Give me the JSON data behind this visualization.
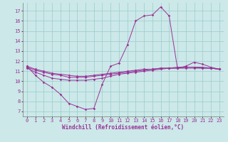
{
  "bg_color": "#cce8e8",
  "grid_color": "#99cccc",
  "line_color": "#993399",
  "xlabel": "Windchill (Refroidissement éolien,°C)",
  "xlim": [
    -0.5,
    23.5
  ],
  "ylim": [
    6.5,
    17.8
  ],
  "yticks": [
    7,
    8,
    9,
    10,
    11,
    12,
    13,
    14,
    15,
    16,
    17
  ],
  "xticks": [
    0,
    1,
    2,
    3,
    4,
    5,
    6,
    7,
    8,
    9,
    10,
    11,
    12,
    13,
    14,
    15,
    16,
    17,
    18,
    19,
    20,
    21,
    22,
    23
  ],
  "line1_x": [
    0,
    1,
    2,
    3,
    4,
    5,
    6,
    7,
    8,
    9,
    10,
    11,
    12,
    13,
    14,
    15,
    16,
    17,
    18,
    19,
    20,
    21,
    22,
    23
  ],
  "line1_y": [
    11.5,
    10.6,
    9.9,
    9.4,
    8.7,
    7.8,
    7.5,
    7.2,
    7.3,
    9.7,
    11.5,
    11.8,
    13.6,
    16.0,
    16.5,
    16.6,
    17.4,
    16.5,
    11.3,
    11.5,
    11.9,
    11.7,
    11.4,
    11.2
  ],
  "line2_x": [
    0,
    1,
    2,
    3,
    4,
    5,
    6,
    7,
    8,
    9,
    10,
    11,
    12,
    13,
    14,
    15,
    16,
    17,
    18,
    19,
    20,
    21,
    22,
    23
  ],
  "line2_y": [
    11.3,
    10.9,
    10.6,
    10.3,
    10.2,
    10.1,
    10.1,
    10.1,
    10.2,
    10.3,
    10.5,
    10.7,
    10.8,
    10.9,
    11.0,
    11.1,
    11.2,
    11.3,
    11.3,
    11.3,
    11.3,
    11.3,
    11.3,
    11.2
  ],
  "line3_x": [
    0,
    1,
    2,
    3,
    4,
    5,
    6,
    7,
    8,
    9,
    10,
    11,
    12,
    13,
    14,
    15,
    16,
    17,
    18,
    19,
    20,
    21,
    22,
    23
  ],
  "line3_y": [
    11.4,
    11.1,
    10.9,
    10.7,
    10.6,
    10.4,
    10.4,
    10.4,
    10.5,
    10.6,
    10.7,
    10.8,
    10.9,
    11.0,
    11.1,
    11.2,
    11.3,
    11.3,
    11.3,
    11.4,
    11.4,
    11.3,
    11.3,
    11.2
  ],
  "line4_x": [
    0,
    1,
    2,
    3,
    4,
    5,
    6,
    7,
    8,
    9,
    10,
    11,
    12,
    13,
    14,
    15,
    16,
    17,
    18,
    19,
    20,
    21,
    22,
    23
  ],
  "line4_y": [
    11.5,
    11.2,
    11.0,
    10.8,
    10.7,
    10.6,
    10.5,
    10.5,
    10.6,
    10.7,
    10.8,
    10.9,
    11.0,
    11.1,
    11.2,
    11.2,
    11.3,
    11.3,
    11.4,
    11.4,
    11.4,
    11.4,
    11.3,
    11.2
  ],
  "tick_fontsize": 5.0,
  "xlabel_fontsize": 5.5,
  "marker_size": 1.8,
  "line_width": 0.7
}
